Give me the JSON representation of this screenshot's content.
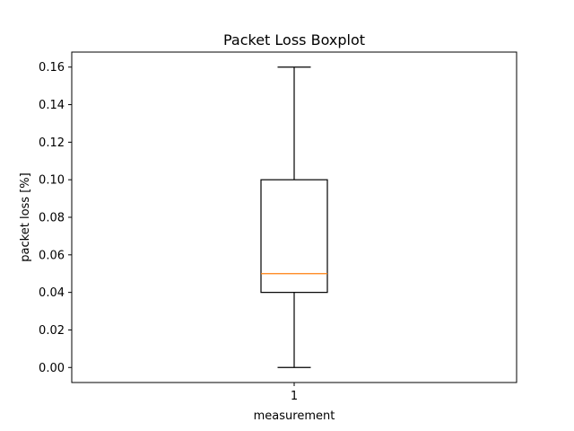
{
  "chart_data": {
    "type": "boxplot",
    "title": "Packet Loss Boxplot",
    "xlabel": "measurement",
    "ylabel": "packet loss [%]",
    "categories": [
      "1"
    ],
    "boxes": [
      {
        "category": "1",
        "whisker_low": 0.0,
        "q1": 0.04,
        "median": 0.05,
        "q3": 0.1,
        "whisker_high": 0.16
      }
    ],
    "y_ticks": [
      "0.00",
      "0.02",
      "0.04",
      "0.06",
      "0.08",
      "0.10",
      "0.12",
      "0.14",
      "0.16"
    ],
    "ylim": [
      -0.008,
      0.168
    ],
    "grid": false,
    "colors": {
      "box": "#000000",
      "median": "#ff7f0e",
      "whisker": "#000000"
    }
  }
}
